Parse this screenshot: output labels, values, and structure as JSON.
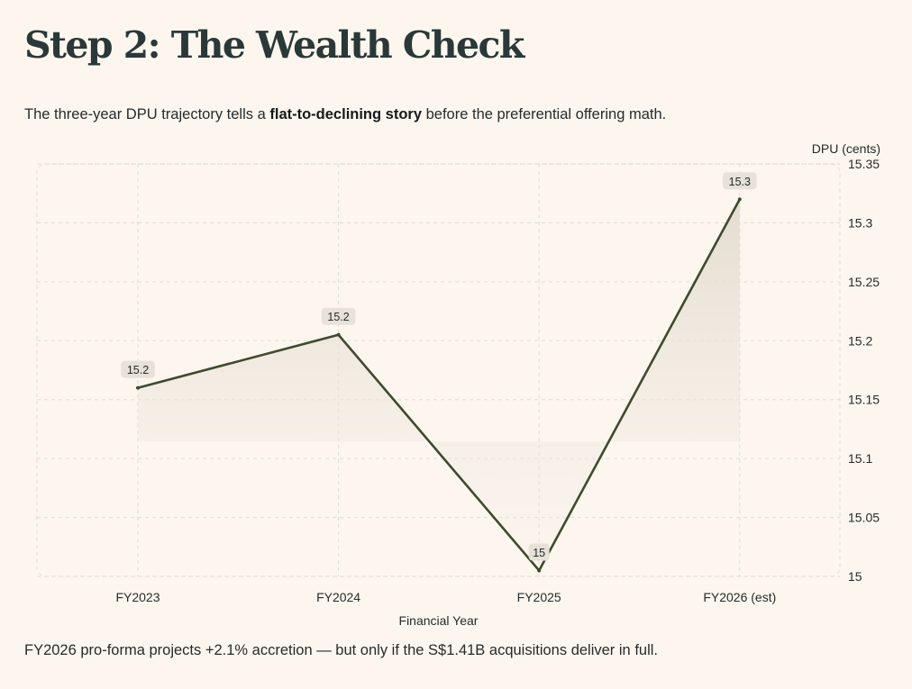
{
  "page": {
    "title": "Step 2: The Wealth Check",
    "subtitle_before": "The three-year DPU trajectory tells a ",
    "subtitle_bold": "flat-to-declining story",
    "subtitle_after": " before the preferential offering math.",
    "footnote": "FY2026 pro-forma projects +2.1% accretion — but only if the S$1.41B acquisitions deliver in full."
  },
  "colors": {
    "background": "#fcf6ef",
    "line": "#3e4a2e",
    "area": "#e4ddd2",
    "grid": "#dedbd5",
    "label_bg": "#e7e1d8"
  },
  "chart_data": {
    "type": "area",
    "title": "",
    "xlabel": "Financial Year",
    "ylabel": "DPU (cents)",
    "y_axis_position": "right",
    "categories": [
      "FY2023",
      "FY2024",
      "FY2025",
      "FY2026 (est)"
    ],
    "series": [
      {
        "name": "DPU (cents)",
        "values": [
          15.16,
          15.205,
          15.005,
          15.32
        ],
        "data_labels": [
          "15.2",
          "15.2",
          "15",
          "15.3"
        ]
      }
    ],
    "ylim": [
      15,
      15.35
    ],
    "y_ticks": [
      15,
      15.05,
      15.1,
      15.15,
      15.2,
      15.25,
      15.3,
      15.35
    ],
    "y_tick_labels": [
      "15",
      "15.05",
      "15.1",
      "15.15",
      "15.2",
      "15.25",
      "15.3",
      "15.35"
    ],
    "grid": true
  }
}
